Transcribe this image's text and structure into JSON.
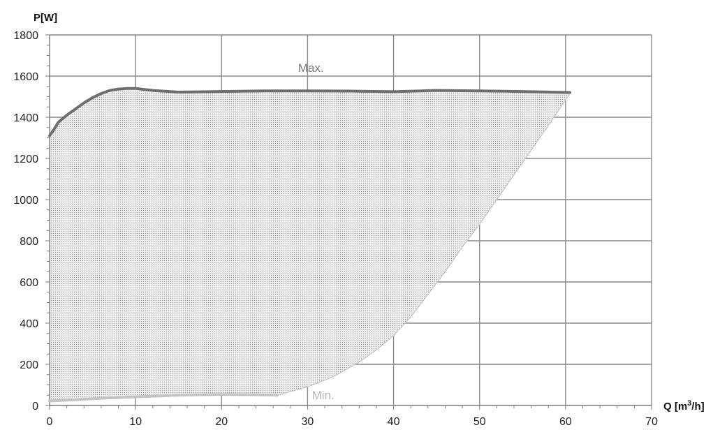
{
  "chart_data": {
    "type": "area",
    "ylabel": "P[W]",
    "xlabel_prefix": "Q [m",
    "xlabel_sup": "3",
    "xlabel_suffix": "/h]",
    "xlim": [
      0,
      70
    ],
    "ylim": [
      0,
      1800
    ],
    "x_ticks": [
      0,
      10,
      20,
      30,
      40,
      50,
      60,
      70
    ],
    "y_ticks": [
      0,
      200,
      400,
      600,
      800,
      1000,
      1200,
      1400,
      1600,
      1800
    ],
    "grid": true,
    "series": [
      {
        "name": "Max.",
        "color": "#6e6e6e",
        "points": [
          [
            0,
            1310
          ],
          [
            0.5,
            1340
          ],
          [
            1,
            1375
          ],
          [
            2,
            1410
          ],
          [
            3,
            1440
          ],
          [
            4,
            1470
          ],
          [
            5,
            1495
          ],
          [
            6,
            1515
          ],
          [
            7,
            1530
          ],
          [
            8,
            1537
          ],
          [
            9,
            1540
          ],
          [
            10,
            1540
          ],
          [
            12,
            1530
          ],
          [
            15,
            1522
          ],
          [
            20,
            1525
          ],
          [
            25,
            1528
          ],
          [
            30,
            1528
          ],
          [
            35,
            1527
          ],
          [
            40,
            1524
          ],
          [
            45,
            1530
          ],
          [
            50,
            1528
          ],
          [
            55,
            1525
          ],
          [
            60.5,
            1520
          ]
        ]
      },
      {
        "name": "Min.",
        "color": "#c4c4c4",
        "points": [
          [
            0,
            22
          ],
          [
            3,
            28
          ],
          [
            6,
            35
          ],
          [
            10,
            42
          ],
          [
            15,
            50
          ],
          [
            20,
            54
          ],
          [
            24,
            52
          ],
          [
            26.5,
            50
          ],
          [
            30,
            90
          ],
          [
            33,
            140
          ],
          [
            36,
            210
          ],
          [
            38,
            270
          ],
          [
            40,
            340
          ],
          [
            42,
            430
          ],
          [
            44,
            540
          ],
          [
            46,
            650
          ],
          [
            48,
            770
          ],
          [
            50,
            880
          ],
          [
            52,
            1000
          ],
          [
            54,
            1120
          ],
          [
            56,
            1240
          ],
          [
            58,
            1360
          ],
          [
            60.5,
            1515
          ]
        ]
      }
    ],
    "fill_between": true
  }
}
